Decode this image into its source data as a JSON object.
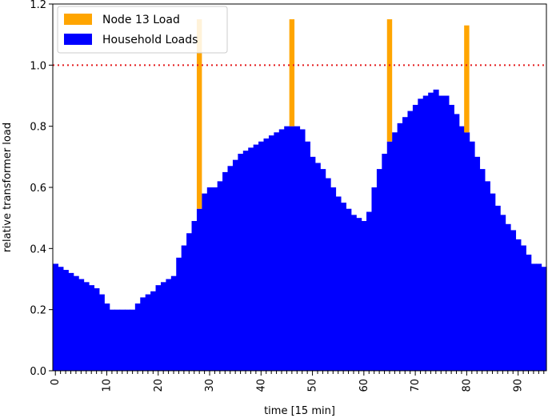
{
  "chart_data": {
    "type": "bar",
    "stacked": true,
    "title": "",
    "xlabel": "time [15 min]",
    "ylabel": "relative transformer load",
    "xlim": [
      -0.5,
      95.5
    ],
    "ylim": [
      0,
      1.2
    ],
    "x_ticks": [
      0,
      10,
      20,
      30,
      40,
      50,
      60,
      70,
      80,
      90
    ],
    "y_ticks": [
      "0.0",
      "0.2",
      "0.4",
      "0.6",
      "0.8",
      "1.0",
      "1.2"
    ],
    "reference_line": {
      "value": 1.0,
      "style": "dotted",
      "color": "#e41a1c"
    },
    "legend_position": "top-left",
    "series": [
      {
        "name": "Household Loads",
        "color": "#0000ff",
        "values": [
          0.35,
          0.34,
          0.33,
          0.32,
          0.31,
          0.3,
          0.29,
          0.28,
          0.27,
          0.25,
          0.22,
          0.2,
          0.2,
          0.2,
          0.2,
          0.2,
          0.22,
          0.24,
          0.25,
          0.26,
          0.28,
          0.29,
          0.3,
          0.31,
          0.37,
          0.41,
          0.45,
          0.49,
          0.53,
          0.58,
          0.6,
          0.6,
          0.62,
          0.65,
          0.67,
          0.69,
          0.71,
          0.72,
          0.73,
          0.74,
          0.75,
          0.76,
          0.77,
          0.78,
          0.79,
          0.8,
          0.8,
          0.8,
          0.79,
          0.75,
          0.7,
          0.68,
          0.66,
          0.63,
          0.6,
          0.57,
          0.55,
          0.53,
          0.51,
          0.5,
          0.49,
          0.52,
          0.6,
          0.66,
          0.71,
          0.75,
          0.78,
          0.81,
          0.83,
          0.85,
          0.87,
          0.89,
          0.9,
          0.91,
          0.92,
          0.9,
          0.9,
          0.87,
          0.84,
          0.8,
          0.78,
          0.75,
          0.7,
          0.66,
          0.62,
          0.58,
          0.54,
          0.51,
          0.48,
          0.46,
          0.43,
          0.41,
          0.38,
          0.35,
          0.35,
          0.34
        ]
      },
      {
        "name": "Node 13 Load",
        "color": "#ffa500",
        "values": [
          0,
          0,
          0,
          0,
          0,
          0,
          0,
          0,
          0,
          0,
          0,
          0,
          0,
          0,
          0,
          0,
          0,
          0,
          0,
          0,
          0,
          0,
          0,
          0,
          0,
          0,
          0,
          0,
          0.62,
          0,
          0,
          0,
          0,
          0,
          0,
          0,
          0,
          0,
          0,
          0,
          0,
          0,
          0,
          0,
          0,
          0,
          0.35,
          0,
          0,
          0,
          0,
          0,
          0,
          0,
          0,
          0,
          0,
          0,
          0,
          0,
          0,
          0,
          0,
          0,
          0,
          0.4,
          0,
          0,
          0,
          0,
          0,
          0,
          0,
          0,
          0,
          0,
          0,
          0,
          0,
          0,
          0.35,
          0,
          0,
          0,
          0,
          0,
          0,
          0,
          0,
          0,
          0,
          0,
          0,
          0,
          0,
          0
        ]
      }
    ]
  }
}
